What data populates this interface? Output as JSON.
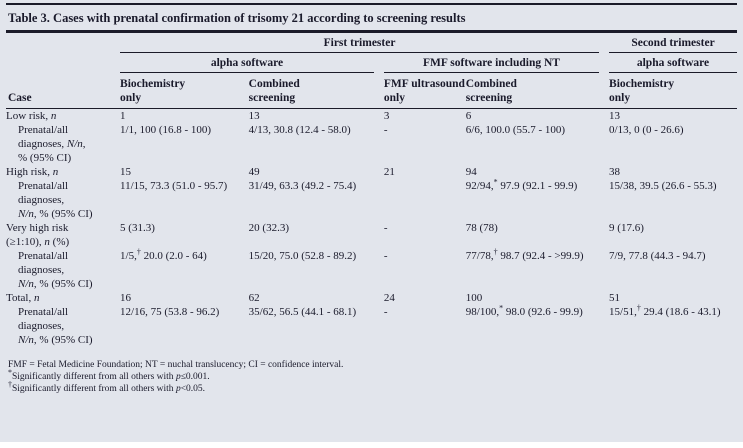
{
  "colors": {
    "background": "#e2e5ec",
    "text": "#1a1a2b",
    "rule": "#1b1b29"
  },
  "table": {
    "title": "Table 3. Cases with prenatal confirmation of trisomy 21 according to screening results",
    "group_row1": {
      "first": "First trimester",
      "second": "Second trimester"
    },
    "group_row2": {
      "alpha1": "alpha software",
      "fmf": "FMF software including NT",
      "alpha2": "alpha software"
    },
    "columns": {
      "case": "Case",
      "col1": "Biochemistry<br>only",
      "col2": "Combined<br>screening",
      "col3": "FMF ultrasound<br>only",
      "col4": "Combined<br>screening",
      "col5": "Biochemistry<br>only"
    },
    "rows": [
      {
        "label": "Low risk, <i>n</i>",
        "indent": false,
        "cells": [
          "1",
          "13",
          "3",
          "6",
          "13"
        ]
      },
      {
        "label": "Prenatal/all<br>diagnoses, <i>N/n</i>,<br>% (95% CI)",
        "indent": true,
        "cells": [
          "1/1, 100 (16.8 - 100)",
          "4/13, 30.8 (12.4 - 58.0)",
          "-",
          "6/6, 100.0 (55.7 - 100)",
          "0/13, 0 (0 - 26.6)"
        ]
      },
      {
        "label": "High risk, <i>n</i>",
        "indent": false,
        "cells": [
          "15",
          "49",
          "21",
          "94",
          "38"
        ]
      },
      {
        "label": "Prenatal/all<br>diagnoses,<br><i>N/n</i>, % (95% CI)",
        "indent": true,
        "cells": [
          "11/15, 73.3 (51.0 - 95.7)",
          "31/49, 63.3 (49.2 - 75.4)",
          "",
          "92/94,<sup>*</sup> 97.9 (92.1 - 99.9)",
          "15/38, 39.5 (26.6 - 55.3)"
        ]
      },
      {
        "label": "Very high risk<br>(≥1:10), <i>n</i> (%)",
        "indent": false,
        "cells": [
          "5 (31.3)",
          "20 (32.3)",
          "-",
          "78 (78)",
          "9 (17.6)"
        ]
      },
      {
        "label": "Prenatal/all<br>diagnoses,<br><i>N/n</i>, % (95% CI)",
        "indent": true,
        "cells": [
          "1/5,<sup>†</sup> 20.0 (2.0 - 64)",
          "15/20, 75.0 (52.8 - 89.2)",
          "-",
          "77/78,<sup>†</sup> 98.7 (92.4 - &gt;99.9)",
          "7/9, 77.8 (44.3 - 94.7)"
        ]
      },
      {
        "label": "Total, <i>n</i>",
        "indent": false,
        "cells": [
          "16",
          "62",
          "24",
          "100",
          "51"
        ]
      },
      {
        "label": "Prenatal/all<br>diagnoses,<br><i>N/n</i>, % (95% CI)",
        "indent": true,
        "cells": [
          "12/16, 75 (53.8 - 96.2)",
          "35/62, 56.5 (44.1 - 68.1)",
          "-",
          "98/100,<sup>*</sup> 98.0 (92.6 - 99.9)",
          "15/51,<sup>†</sup> 29.4 (18.6 - 43.1)"
        ]
      }
    ]
  },
  "footnotes": {
    "abbrev": "FMF = Fetal Medicine Foundation; NT = nuchal translucency; CI = confidence interval.",
    "star": "<sup>*</sup>Significantly different from all others with <i>p</i>≤0.001.",
    "dagger": "<sup>†</sup>Significantly different from all others with <i>p</i>&lt;0.05."
  }
}
